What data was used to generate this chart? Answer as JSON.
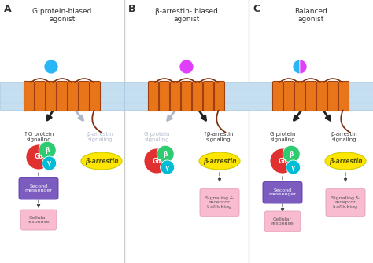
{
  "title_A": "G protein-biased\nagonist",
  "title_B": "β-arrestin- biased\nagonist",
  "title_C": "Balanced\nagonist",
  "bg_color": "#ffffff",
  "helix_color": "#E8751A",
  "helix_dark": "#a04010",
  "loop_color": "#7B3010",
  "agonist_A_color": "#29B6F6",
  "agonist_B_color": "#E040FB",
  "Ga_color": "#e03030",
  "Gb_color": "#2ecc71",
  "Gy_color": "#00bcd4",
  "barr_color": "#FFE600",
  "second_msg_color": "#7c5cbf",
  "cellular_color": "#f8bbd0",
  "signaling_color": "#f8bbd0",
  "arrow_black": "#222222",
  "arrow_gray": "#b0b8c8",
  "text_gray": "#b0b8c8",
  "text_black": "#333333",
  "membrane_fill": "#c5dff0",
  "membrane_line": "#a8c8e0",
  "divider_color": "#cccccc"
}
